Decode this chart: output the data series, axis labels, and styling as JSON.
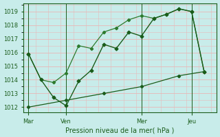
{
  "title": "Pression niveau de la mer( hPa )",
  "bg_color": "#c8ecea",
  "grid_color": "#e8b8b8",
  "line_color1": "#1a5c1a",
  "line_color2": "#2d7a2d",
  "line_color3": "#1a5c1a",
  "ylim": [
    1011.6,
    1019.6
  ],
  "yticks": [
    1012,
    1013,
    1014,
    1015,
    1016,
    1017,
    1018,
    1019
  ],
  "xtick_labels": [
    "Mar",
    "Ven",
    "Mer",
    "Jeu"
  ],
  "xtick_positions": [
    0,
    21,
    63,
    91
  ],
  "xlim": [
    -3,
    105
  ],
  "vlines": [
    0,
    21,
    63,
    91
  ],
  "line1_x": [
    0,
    7,
    14,
    21,
    28,
    35,
    42,
    49,
    56,
    63,
    70,
    77,
    84,
    91,
    98
  ],
  "line1_y": [
    1015.9,
    1014.0,
    1012.7,
    1012.1,
    1013.9,
    1014.7,
    1016.6,
    1016.3,
    1017.5,
    1017.2,
    1018.5,
    1018.8,
    1019.2,
    1019.0,
    1014.6
  ],
  "line2_x": [
    0,
    7,
    14,
    21,
    28,
    35,
    42,
    49,
    56,
    63,
    70,
    77,
    84,
    91,
    98
  ],
  "line2_y": [
    1015.9,
    1014.0,
    1013.8,
    1014.5,
    1016.5,
    1016.3,
    1017.5,
    1017.8,
    1018.4,
    1018.7,
    1018.5,
    1018.8,
    1019.2,
    1019.0,
    1014.6
  ],
  "line3_x": [
    0,
    21,
    42,
    63,
    84,
    98
  ],
  "line3_y": [
    1012.0,
    1012.5,
    1013.0,
    1013.5,
    1014.3,
    1014.6
  ],
  "ylabel_fontsize": 6,
  "xlabel_fontsize": 7,
  "tick_fontsize": 6
}
